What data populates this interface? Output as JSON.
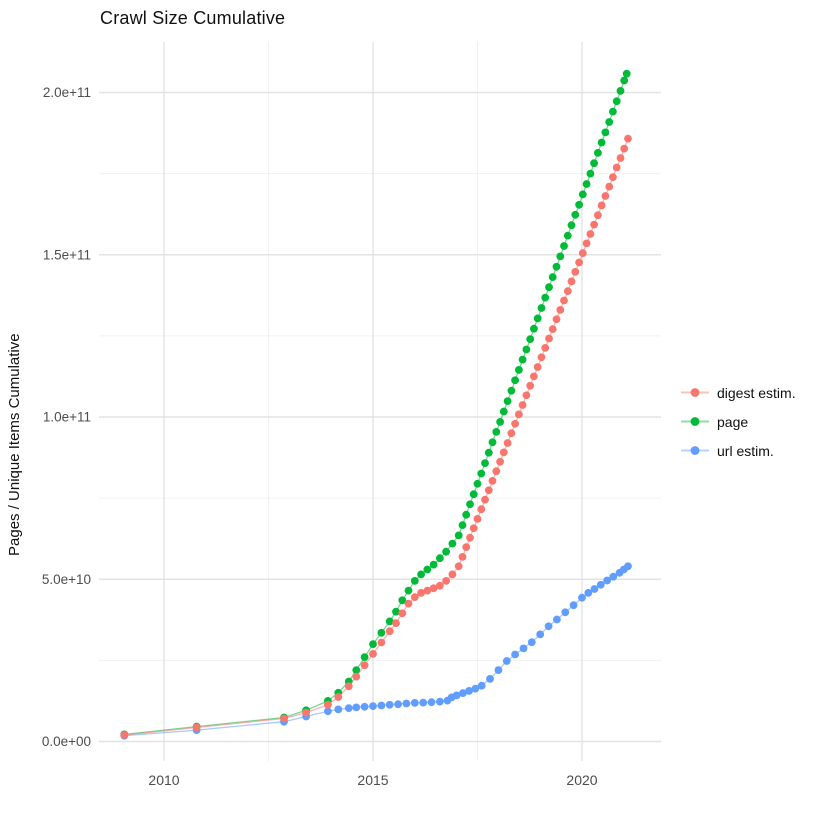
{
  "chart_data": {
    "type": "scatter",
    "title": "Crawl Size Cumulative",
    "xlabel": "",
    "ylabel": "Pages / Unique Items Cumulative",
    "values_unit": "pages, stored in units of 1e9 (billions)",
    "x_axis": {
      "tick_values": [
        2010,
        2015,
        2020
      ],
      "tick_labels": [
        "2010",
        "2015",
        "2020"
      ],
      "minor_tick_values": [
        2012.5,
        2017.5
      ],
      "range": [
        2008.4,
        2021.7
      ]
    },
    "y_axis": {
      "tick_values": [
        0,
        50,
        100,
        150,
        200
      ],
      "tick_labels": [
        "0.0e+00",
        "5.0e+10",
        "1.0e+11",
        "1.5e+11",
        "2.0e+11"
      ],
      "minor_tick_values": [
        25,
        75,
        125,
        175
      ],
      "range": [
        -6,
        216
      ]
    },
    "grid": true,
    "legend_position": "right",
    "colors": {
      "digest_estim": "#F8766D",
      "page": "#00BA38",
      "url_estim": "#619CFF",
      "grid_major": "#e3e3e3",
      "grid_minor": "#f1f1f1",
      "tick_label": "#4d4d4d"
    },
    "series": [
      {
        "name": "digest estim.",
        "color": "#F8766D",
        "points": [
          [
            2009.05,
            2.0
          ],
          [
            2010.78,
            4.3
          ],
          [
            2012.87,
            7.1
          ],
          [
            2013.4,
            8.9
          ],
          [
            2013.92,
            11.3
          ],
          [
            2014.17,
            13.7
          ],
          [
            2014.42,
            17.0
          ],
          [
            2014.6,
            20.0
          ],
          [
            2014.8,
            23.5
          ],
          [
            2015.0,
            27.0
          ],
          [
            2015.2,
            30.5
          ],
          [
            2015.4,
            34.0
          ],
          [
            2015.55,
            36.5
          ],
          [
            2015.7,
            39.5
          ],
          [
            2015.85,
            42.5
          ],
          [
            2016.0,
            44.5
          ],
          [
            2016.15,
            45.8
          ],
          [
            2016.3,
            46.5
          ],
          [
            2016.45,
            47.2
          ],
          [
            2016.6,
            48.0
          ],
          [
            2016.75,
            49.5
          ],
          [
            2016.9,
            51.5
          ],
          [
            2017.05,
            54.0
          ],
          [
            2017.14,
            56.9
          ],
          [
            2017.23,
            59.9
          ],
          [
            2017.32,
            62.8
          ],
          [
            2017.41,
            65.7
          ],
          [
            2017.5,
            68.6
          ],
          [
            2017.59,
            71.6
          ],
          [
            2017.68,
            74.5
          ],
          [
            2017.77,
            77.4
          ],
          [
            2017.86,
            80.3
          ],
          [
            2017.95,
            83.3
          ],
          [
            2018.04,
            86.2
          ],
          [
            2018.13,
            89.1
          ],
          [
            2018.22,
            92.0
          ],
          [
            2018.31,
            95.0
          ],
          [
            2018.4,
            97.9
          ],
          [
            2018.49,
            100.8
          ],
          [
            2018.58,
            103.7
          ],
          [
            2018.67,
            106.7
          ],
          [
            2018.76,
            109.6
          ],
          [
            2018.85,
            112.5
          ],
          [
            2018.94,
            115.4
          ],
          [
            2019.03,
            118.4
          ],
          [
            2019.12,
            121.3
          ],
          [
            2019.21,
            124.2
          ],
          [
            2019.3,
            127.1
          ],
          [
            2019.39,
            130.1
          ],
          [
            2019.48,
            133.0
          ],
          [
            2019.57,
            135.9
          ],
          [
            2019.66,
            138.8
          ],
          [
            2019.75,
            141.8
          ],
          [
            2019.84,
            144.7
          ],
          [
            2019.93,
            147.6
          ],
          [
            2020.02,
            150.5
          ],
          [
            2020.11,
            153.5
          ],
          [
            2020.2,
            156.4
          ],
          [
            2020.29,
            159.3
          ],
          [
            2020.38,
            162.2
          ],
          [
            2020.47,
            165.2
          ],
          [
            2020.56,
            168.1
          ],
          [
            2020.65,
            171.0
          ],
          [
            2020.74,
            173.9
          ],
          [
            2020.83,
            176.9
          ],
          [
            2020.92,
            179.8
          ],
          [
            2021.01,
            182.7
          ],
          [
            2021.1,
            185.8
          ]
        ]
      },
      {
        "name": "page",
        "color": "#00BA38",
        "points": [
          [
            2009.05,
            2.2
          ],
          [
            2010.78,
            4.6
          ],
          [
            2012.87,
            7.4
          ],
          [
            2013.4,
            9.6
          ],
          [
            2013.92,
            12.5
          ],
          [
            2014.17,
            15.0
          ],
          [
            2014.42,
            18.5
          ],
          [
            2014.6,
            22.0
          ],
          [
            2014.8,
            26.0
          ],
          [
            2015.0,
            30.0
          ],
          [
            2015.2,
            33.5
          ],
          [
            2015.4,
            37.0
          ],
          [
            2015.55,
            40.0
          ],
          [
            2015.7,
            43.5
          ],
          [
            2015.85,
            46.5
          ],
          [
            2016.0,
            49.5
          ],
          [
            2016.15,
            51.5
          ],
          [
            2016.3,
            53.0
          ],
          [
            2016.45,
            54.5
          ],
          [
            2016.6,
            56.5
          ],
          [
            2016.75,
            58.5
          ],
          [
            2016.9,
            61.0
          ],
          [
            2017.05,
            63.5
          ],
          [
            2017.14,
            66.7
          ],
          [
            2017.23,
            69.9
          ],
          [
            2017.32,
            73.1
          ],
          [
            2017.41,
            76.2
          ],
          [
            2017.5,
            79.4
          ],
          [
            2017.59,
            82.6
          ],
          [
            2017.68,
            85.8
          ],
          [
            2017.77,
            89.0
          ],
          [
            2017.86,
            92.2
          ],
          [
            2017.95,
            95.4
          ],
          [
            2018.04,
            98.5
          ],
          [
            2018.13,
            101.7
          ],
          [
            2018.22,
            104.9
          ],
          [
            2018.31,
            108.1
          ],
          [
            2018.4,
            111.3
          ],
          [
            2018.49,
            114.5
          ],
          [
            2018.58,
            117.7
          ],
          [
            2018.67,
            120.8
          ],
          [
            2018.76,
            124.0
          ],
          [
            2018.85,
            127.2
          ],
          [
            2018.94,
            130.4
          ],
          [
            2019.03,
            133.6
          ],
          [
            2019.12,
            136.8
          ],
          [
            2019.21,
            140.0
          ],
          [
            2019.3,
            143.1
          ],
          [
            2019.39,
            146.3
          ],
          [
            2019.48,
            149.5
          ],
          [
            2019.57,
            152.7
          ],
          [
            2019.66,
            155.9
          ],
          [
            2019.75,
            159.1
          ],
          [
            2019.84,
            162.3
          ],
          [
            2019.93,
            165.4
          ],
          [
            2020.02,
            168.6
          ],
          [
            2020.11,
            171.8
          ],
          [
            2020.2,
            175.0
          ],
          [
            2020.29,
            178.2
          ],
          [
            2020.38,
            181.4
          ],
          [
            2020.47,
            184.6
          ],
          [
            2020.56,
            187.7
          ],
          [
            2020.65,
            190.9
          ],
          [
            2020.74,
            194.1
          ],
          [
            2020.83,
            197.3
          ],
          [
            2020.92,
            200.5
          ],
          [
            2021.01,
            203.7
          ],
          [
            2021.07,
            205.8
          ]
        ]
      },
      {
        "name": "url estim.",
        "color": "#619CFF",
        "points": [
          [
            2009.05,
            1.8
          ],
          [
            2010.78,
            3.5
          ],
          [
            2012.87,
            6.1
          ],
          [
            2013.4,
            7.7
          ],
          [
            2013.92,
            9.3
          ],
          [
            2014.17,
            9.9
          ],
          [
            2014.42,
            10.3
          ],
          [
            2014.6,
            10.5
          ],
          [
            2014.8,
            10.7
          ],
          [
            2015.0,
            10.9
          ],
          [
            2015.2,
            11.1
          ],
          [
            2015.4,
            11.3
          ],
          [
            2015.6,
            11.5
          ],
          [
            2015.8,
            11.7
          ],
          [
            2016.0,
            11.9
          ],
          [
            2016.2,
            12.0
          ],
          [
            2016.4,
            12.1
          ],
          [
            2016.6,
            12.3
          ],
          [
            2016.78,
            12.6
          ],
          [
            2016.88,
            13.6
          ],
          [
            2017.0,
            14.2
          ],
          [
            2017.15,
            14.9
          ],
          [
            2017.3,
            15.6
          ],
          [
            2017.45,
            16.3
          ],
          [
            2017.6,
            17.2
          ],
          [
            2017.8,
            19.3
          ],
          [
            2018.0,
            22.0
          ],
          [
            2018.2,
            24.8
          ],
          [
            2018.4,
            26.8
          ],
          [
            2018.6,
            28.7
          ],
          [
            2018.8,
            30.6
          ],
          [
            2019.0,
            33.0
          ],
          [
            2019.2,
            35.5
          ],
          [
            2019.4,
            37.6
          ],
          [
            2019.6,
            39.8
          ],
          [
            2019.8,
            42.0
          ],
          [
            2020.0,
            44.3
          ],
          [
            2020.15,
            45.8
          ],
          [
            2020.3,
            47.0
          ],
          [
            2020.45,
            48.3
          ],
          [
            2020.6,
            49.6
          ],
          [
            2020.75,
            50.8
          ],
          [
            2020.9,
            52.0
          ],
          [
            2021.0,
            53.0
          ],
          [
            2021.1,
            54.0
          ]
        ]
      }
    ]
  },
  "legend": {
    "items": [
      "digest estim.",
      "page",
      "url estim."
    ]
  }
}
